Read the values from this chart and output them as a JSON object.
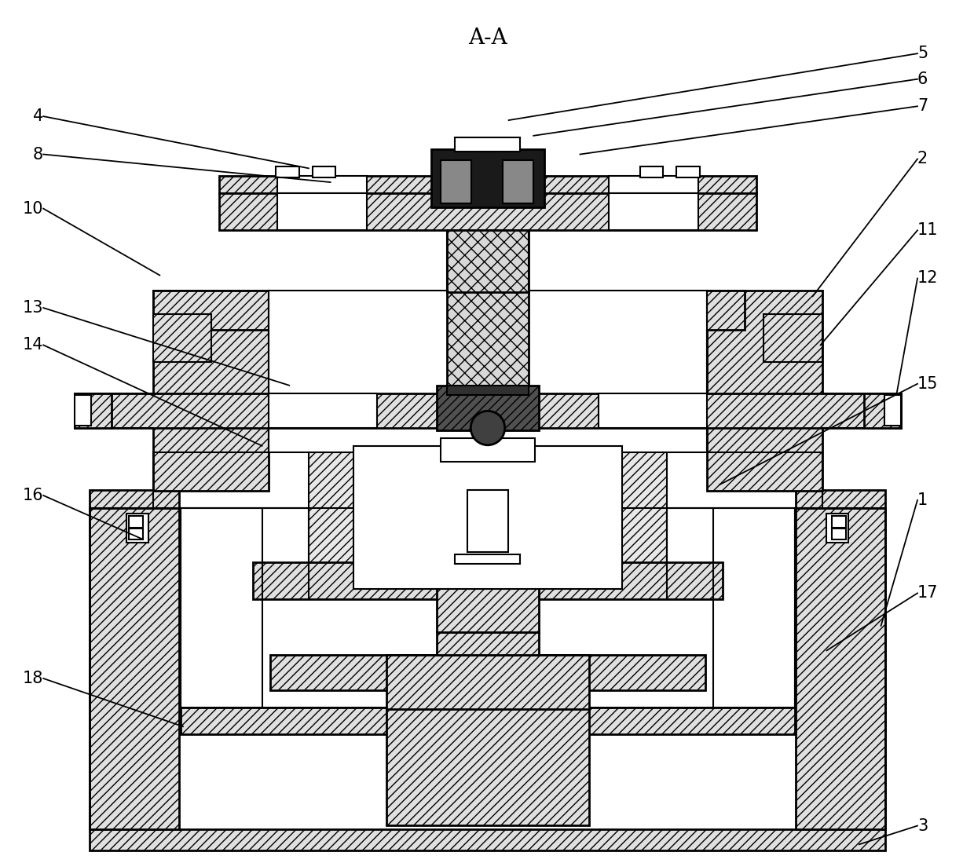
{
  "title": "A-A",
  "bg_color": "#ffffff",
  "figsize": [
    12.4,
    10.99
  ],
  "dpi": 100,
  "labels_data": [
    [
      "1",
      1175,
      638,
      1128,
      800
    ],
    [
      "2",
      1175,
      198,
      1040,
      375
    ],
    [
      "3",
      1175,
      1058,
      1100,
      1082
    ],
    [
      "4",
      48,
      143,
      390,
      210
    ],
    [
      "5",
      1175,
      62,
      648,
      148
    ],
    [
      "6",
      1175,
      95,
      680,
      168
    ],
    [
      "7",
      1175,
      130,
      740,
      192
    ],
    [
      "8",
      48,
      192,
      418,
      228
    ],
    [
      "10",
      48,
      262,
      198,
      348
    ],
    [
      "11",
      1175,
      290,
      1050,
      438
    ],
    [
      "12",
      1175,
      352,
      1148,
      502
    ],
    [
      "13",
      48,
      390,
      365,
      490
    ],
    [
      "14",
      48,
      438,
      330,
      568
    ],
    [
      "15",
      1175,
      488,
      920,
      618
    ],
    [
      "16",
      48,
      632,
      175,
      688
    ],
    [
      "17",
      1175,
      758,
      1058,
      832
    ],
    [
      "18",
      48,
      868,
      228,
      930
    ]
  ]
}
